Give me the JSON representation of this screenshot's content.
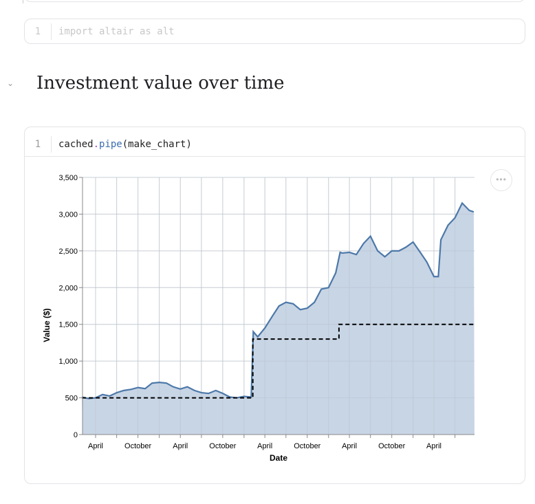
{
  "cells": [
    {
      "line_number": "1",
      "code": "import altair as alt"
    },
    {
      "line_number": "1",
      "code_parts": [
        "cached",
        ".",
        "pipe",
        "(make_chart)"
      ]
    }
  ],
  "heading": "Investment value over time",
  "icons": {
    "collapse": "chevron-down-icon",
    "more": "more-horizontal-icon"
  },
  "more_label": "•••",
  "chart_data": {
    "type": "area",
    "xlabel": "Date",
    "ylabel": "Value ($)",
    "ylim": [
      0,
      3500
    ],
    "yticks": [
      0,
      500,
      1000,
      1500,
      2000,
      2500,
      3000,
      3500
    ],
    "ytick_labels": [
      "0",
      "500",
      "1,000",
      "1,500",
      "2,000",
      "2,500",
      "3,000",
      "3,500"
    ],
    "xtick_labels": [
      "April",
      "October",
      "April",
      "October",
      "April",
      "October",
      "April",
      "October",
      "April"
    ],
    "grid": true,
    "colors": {
      "area": "#c8d5e5",
      "line": "#4c78a8",
      "invested": "#000000"
    },
    "series": [
      {
        "kind": "area-line",
        "x": [
          "2019-02-01",
          "2019-03-01",
          "2019-04-01",
          "2019-05-01",
          "2019-06-01",
          "2019-07-01",
          "2019-08-01",
          "2019-09-01",
          "2019-10-01",
          "2019-11-01",
          "2019-12-01",
          "2020-01-01",
          "2020-02-01",
          "2020-03-01",
          "2020-04-01",
          "2020-05-01",
          "2020-06-01",
          "2020-07-01",
          "2020-08-01",
          "2020-09-01",
          "2020-10-01",
          "2020-11-01",
          "2020-12-01",
          "2021-01-01",
          "2021-02-01",
          "2021-02-10",
          "2021-03-01",
          "2021-04-01",
          "2021-05-01",
          "2021-06-01",
          "2021-07-01",
          "2021-08-01",
          "2021-09-01",
          "2021-10-01",
          "2021-11-01",
          "2021-12-01",
          "2022-01-01",
          "2022-02-01",
          "2022-02-20",
          "2022-03-01",
          "2022-04-01",
          "2022-05-01",
          "2022-06-01",
          "2022-07-01",
          "2022-08-01",
          "2022-09-01",
          "2022-10-01",
          "2022-11-01",
          "2022-12-01",
          "2023-01-01",
          "2023-02-01",
          "2023-03-01",
          "2023-04-01",
          "2023-04-20",
          "2023-05-01",
          "2023-06-01",
          "2023-07-01",
          "2023-08-01",
          "2023-09-01",
          "2023-09-20"
        ],
        "values": [
          510,
          490,
          500,
          545,
          525,
          570,
          600,
          615,
          640,
          625,
          700,
          710,
          700,
          650,
          620,
          650,
          600,
          570,
          560,
          600,
          560,
          510,
          500,
          520,
          510,
          1400,
          1330,
          1450,
          1600,
          1750,
          1800,
          1780,
          1700,
          1720,
          1800,
          1980,
          2000,
          2200,
          2480,
          2470,
          2480,
          2450,
          2600,
          2700,
          2500,
          2420,
          2500,
          2500,
          2550,
          2620,
          2480,
          2350,
          2150,
          2150,
          2650,
          2850,
          2950,
          3150,
          3050,
          3030
        ]
      },
      {
        "kind": "invested-step",
        "x": [
          "2019-02-01",
          "2021-02-08",
          "2022-02-15",
          "2023-09-20"
        ],
        "values": [
          500,
          1300,
          1500,
          1500
        ]
      }
    ]
  }
}
